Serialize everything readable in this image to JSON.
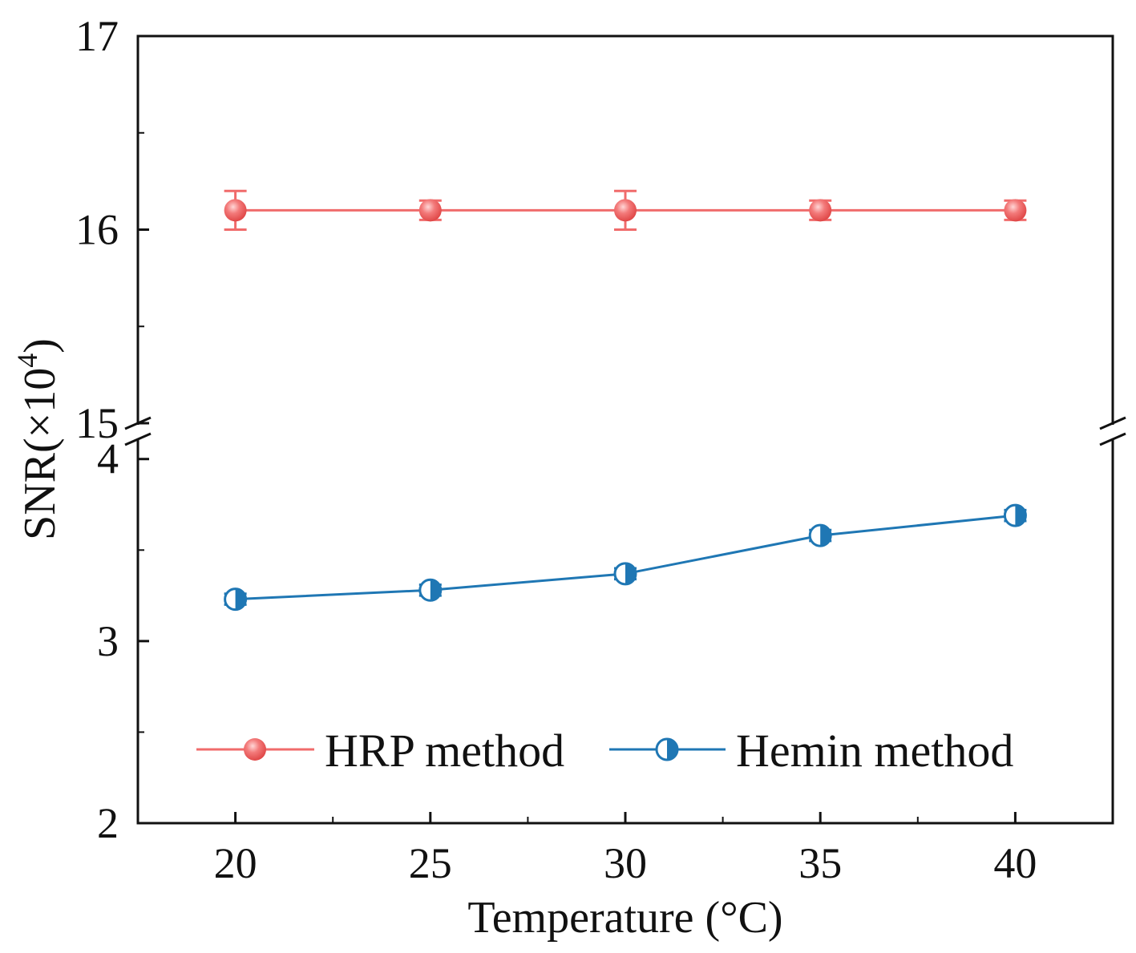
{
  "chart_data": {
    "type": "line",
    "title": "",
    "xlabel": "Temperature (°C)",
    "ylabel_main": "SNR(×10",
    "ylabel_sup": "4",
    "ylabel_close": ")",
    "x": [
      20,
      25,
      30,
      35,
      40
    ],
    "xlim": [
      17.5,
      42.5
    ],
    "x_ticks": [
      "20",
      "25",
      "30",
      "35",
      "40"
    ],
    "y_axis_break": true,
    "upper_ylim": [
      15,
      17
    ],
    "upper_ticks": [
      "17",
      "16",
      "15"
    ],
    "lower_ylim": [
      2,
      4.1
    ],
    "lower_ticks": [
      "4",
      "3",
      "2"
    ],
    "series": [
      {
        "name": "HRP method",
        "color": "#f06b6b",
        "marker": "circle-filled",
        "values": [
          16.1,
          16.1,
          16.1,
          16.1,
          16.1
        ],
        "errors": [
          0.1,
          0.05,
          0.1,
          0.05,
          0.05
        ]
      },
      {
        "name": "Hemin method",
        "color": "#1f77b4",
        "marker": "circle-half",
        "values": [
          3.23,
          3.28,
          3.37,
          3.58,
          3.69
        ],
        "errors": [
          0.03,
          0.03,
          0.03,
          0.03,
          0.03
        ]
      }
    ],
    "legend_position": "bottom"
  }
}
